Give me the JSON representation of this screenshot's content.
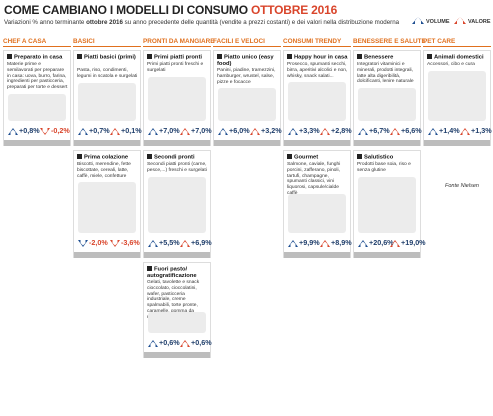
{
  "header": {
    "title": "COME CAMBIANO I MODELLI DI CONSUMO",
    "title_highlight": "OTTOBRE 2016",
    "subtitle_pre": "Variazioni % anno terminante ",
    "subtitle_bold": "ottobre 2016",
    "subtitle_post": " su anno precedente delle quantità (vendite a prezzi costanti) e dei valori nella distribuzione moderna",
    "legend": [
      "VOLUME",
      "VALORE"
    ]
  },
  "columns": [
    {
      "heading": "CHEF A CASA",
      "cards": [
        {
          "title": "Preparato in casa",
          "description": "Materie prime e semilavorati per preparare in casa: uova, burro, farina, ingredienti per pasticceria, preparati per torte e dessert",
          "volume": "+0,8%",
          "value": "-0,2%"
        }
      ]
    },
    {
      "heading": "BASICI",
      "cards": [
        {
          "title": "Piatti basici (primi)",
          "description": "Pasta, riso, condimenti, legumi in scatola e surgelati",
          "volume": "+0,7%",
          "value": "+0,1%"
        },
        {
          "title": "Prima colazione",
          "description": "Biscotti, merendine, fette biscottate, cereali, latte, caffè, miele, confetture",
          "volume": "-2,0%",
          "value": "-3,6%"
        }
      ]
    },
    {
      "heading": "PRONTI DA MANGIARE",
      "cards": [
        {
          "title": "Primi piatti pronti",
          "description": "Primi piatti pronti freschi e surgelati",
          "volume": "+7,0%",
          "value": "+7,0%"
        },
        {
          "title": "Secondi pronti",
          "description": "Secondi piatti pronti (carne, pesce,...) freschi e surgelati",
          "volume": "+5,5%",
          "value": "+6,9%"
        },
        {
          "title": "Fuori pasto/ autogratificazione",
          "description": "Gelati, tavolette e snack cioccolato, cioccolatini, wafer, pasticceria industriale, creme spalmabili, torte pronte, caramelle, gomma da masticare",
          "volume": "+0,6%",
          "value": "+0,6%"
        }
      ]
    },
    {
      "heading": "FACILI E VELOCI",
      "cards": [
        {
          "title": "Piatto unico (easy food)",
          "description": "Panini, piadine, tramezzini, hamburger, wrustel, salse, pizze e focacce",
          "volume": "+6,0%",
          "value": "+3,2%"
        }
      ]
    },
    {
      "heading": "CONSUMI TRENDY",
      "cards": [
        {
          "title": "Happy hour in casa",
          "description": "Prosecco, spumanti secchi, birra, aperitivi alcolici e non, whisky, snack salati...",
          "volume": "+3,3%",
          "value": "+2,8%"
        },
        {
          "title": "Gourmet",
          "description": "Salmone, caviale, funghi porcini, zafferano, pinoli, tartufi, champagne, spumanti classici, vini liquorosi, capsule/cialde caffè",
          "volume": "+9,9%",
          "value": "+8,9%"
        }
      ]
    },
    {
      "heading": "BENESSERE E SALUTE",
      "cards": [
        {
          "title": "Benessere",
          "description": "Integratori vitaminici e minerali, prodotti integrali, latte alta digeribilità, dolcificanti, lenire naturale",
          "volume": "+6,7%",
          "value": "+6,6%"
        },
        {
          "title": "Salutistico",
          "description": "Prodotti base soia, riso e senza glutine",
          "volume": "+20,6%",
          "value": "+19,0%"
        }
      ]
    },
    {
      "heading": "PET CARE",
      "cards": [
        {
          "title": "Animali domestici",
          "description": "Accessori, cibo e cura",
          "volume": "+1,4%",
          "value": "+1,3%"
        }
      ]
    }
  ],
  "source": "Fonte Nielsen"
}
